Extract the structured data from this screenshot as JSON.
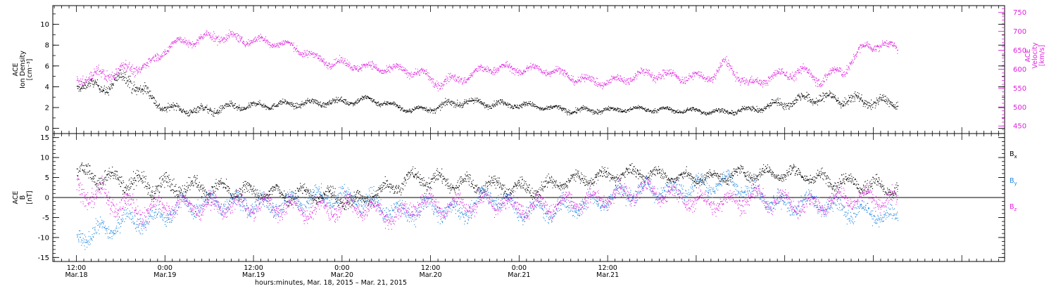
{
  "chart_data": [
    {
      "type": "scatter",
      "panel": "top",
      "left_axis": {
        "label_lines": [
          "ACE",
          "Ion Density",
          "[cm⁻³]"
        ],
        "ylim": [
          -0.5,
          11.8
        ],
        "ticks": [
          0,
          2,
          4,
          6,
          8,
          10
        ],
        "color": "#000000"
      },
      "right_axis": {
        "label_lines": [
          "ACE",
          "Velocity",
          "[km/s]"
        ],
        "ylim": [
          430,
          768
        ],
        "ticks": [
          450,
          500,
          550,
          600,
          650,
          700,
          750
        ],
        "color": "#e020e0"
      },
      "series": [
        {
          "axis": "left",
          "color": "#000000",
          "x": [
            0,
            4,
            7,
            9,
            12,
            15,
            17,
            20,
            24,
            30,
            36,
            40,
            45,
            48,
            52,
            56,
            60,
            64,
            68,
            72,
            76,
            80,
            84,
            88,
            92,
            96,
            100,
            104,
            108,
            111
          ],
          "y": [
            4.2,
            4.0,
            5.0,
            3.5,
            2.0,
            1.8,
            1.7,
            2.0,
            2.2,
            2.4,
            2.6,
            2.8,
            1.8,
            1.9,
            2.6,
            2.4,
            2.3,
            2.0,
            1.7,
            1.8,
            1.9,
            1.8,
            1.7,
            1.6,
            1.9,
            2.5,
            3.0,
            2.8,
            2.6,
            2.4
          ],
          "spread": [
            0.5,
            0.7,
            1.0,
            0.9,
            0.5,
            0.5,
            0.6,
            0.5,
            0.4,
            0.4,
            0.4,
            0.4,
            0.3,
            0.4,
            0.5,
            0.4,
            0.4,
            0.3,
            0.4,
            0.3,
            0.3,
            0.3,
            0.3,
            0.3,
            0.4,
            0.6,
            0.7,
            0.7,
            0.7,
            0.6
          ]
        },
        {
          "axis": "right",
          "color": "#e020e0",
          "x": [
            0,
            2,
            5,
            8,
            10,
            13,
            16,
            19,
            22,
            25,
            28,
            30,
            33,
            36,
            40,
            43,
            46,
            49,
            52,
            56,
            60,
            64,
            68,
            72,
            76,
            78,
            82,
            86,
            88,
            91,
            95,
            98,
            101,
            104,
            107,
            111
          ],
          "y": [
            575,
            580,
            595,
            605,
            615,
            670,
            675,
            690,
            680,
            675,
            668,
            655,
            625,
            615,
            605,
            600,
            595,
            565,
            575,
            605,
            600,
            600,
            575,
            565,
            585,
            590,
            580,
            580,
            615,
            560,
            585,
            595,
            575,
            600,
            665,
            660
          ],
          "spread": [
            15,
            20,
            25,
            20,
            15,
            15,
            15,
            20,
            15,
            15,
            12,
            15,
            15,
            15,
            15,
            15,
            15,
            20,
            15,
            15,
            15,
            15,
            15,
            15,
            15,
            20,
            15,
            15,
            20,
            15,
            15,
            20,
            20,
            20,
            15,
            15
          ]
        }
      ]
    },
    {
      "type": "scatter",
      "panel": "bottom",
      "left_axis": {
        "label_lines": [
          "ACE",
          "B",
          "[nT]"
        ],
        "ylim": [
          -16,
          16
        ],
        "ticks": [
          -15,
          -10,
          -5,
          0,
          5,
          10,
          15
        ],
        "color": "#000000"
      },
      "zero_line": true,
      "series": [
        {
          "name": "B",
          "sub": "x",
          "color": "#000000",
          "x": [
            0,
            4,
            8,
            10,
            14,
            20,
            26,
            32,
            38,
            44,
            46,
            50,
            56,
            62,
            66,
            70,
            74,
            78,
            82,
            86,
            90,
            94,
            98,
            100,
            104,
            108,
            111
          ],
          "y": [
            6,
            5,
            4,
            3,
            3,
            2,
            1,
            1,
            -1,
            4,
            5,
            4,
            3,
            2,
            4,
            5,
            6,
            6,
            5,
            5,
            6,
            6,
            6,
            5,
            4,
            3,
            2
          ],
          "spread": [
            3,
            3,
            3,
            3,
            3,
            2.5,
            2.5,
            2.5,
            2.5,
            2.5,
            2.5,
            2.5,
            2.5,
            2.5,
            2,
            2,
            2,
            2,
            2,
            2,
            2,
            2,
            2,
            2,
            2.5,
            2.5,
            2.5
          ]
        },
        {
          "name": "B",
          "sub": "y",
          "color": "#1f86e0",
          "x": [
            0,
            4,
            7,
            10,
            14,
            20,
            26,
            32,
            38,
            44,
            48,
            52,
            56,
            60,
            64,
            68,
            72,
            76,
            80,
            84,
            88,
            92,
            96,
            100,
            104,
            108,
            111
          ],
          "y": [
            -10,
            -8,
            -5,
            -6,
            -2,
            -1,
            -2,
            0,
            0,
            -4,
            -2,
            -4,
            1,
            -3,
            -3,
            -2,
            0,
            2,
            2,
            3,
            4,
            1,
            -2,
            -1,
            -3,
            -4,
            -5
          ],
          "spread": [
            3,
            3,
            3,
            3,
            3,
            3,
            3,
            3,
            3,
            3,
            3,
            3,
            3,
            3,
            3,
            3,
            3,
            3,
            3,
            3,
            3,
            3,
            3,
            3,
            3,
            3,
            3
          ]
        },
        {
          "name": "B",
          "sub": "z",
          "color": "#e020e0",
          "x": [
            0,
            4,
            8,
            12,
            16,
            20,
            26,
            32,
            38,
            44,
            46,
            50,
            56,
            60,
            64,
            68,
            72,
            76,
            80,
            84,
            88,
            92,
            96,
            100,
            104,
            108,
            111
          ],
          "y": [
            2,
            0,
            -3,
            -2,
            -2,
            -2,
            -2,
            -3,
            -2,
            -5,
            -1,
            -2,
            -1,
            -2,
            -2,
            -1,
            0,
            2,
            1,
            -1,
            -1,
            0,
            -1,
            -2,
            0,
            0,
            -1
          ],
          "spread": [
            4,
            4,
            4,
            3,
            3,
            3,
            3,
            3,
            3,
            3,
            3.5,
            3,
            3,
            3,
            3,
            3,
            3,
            3,
            3,
            3,
            3,
            3,
            3,
            3,
            3,
            3,
            3
          ]
        }
      ]
    }
  ],
  "x_axis": {
    "range_hours": [
      -3.2,
      125.8
    ],
    "data_end_hours": 111.3,
    "major_hours": [
      0,
      12,
      24,
      36,
      48,
      60,
      72,
      84,
      96,
      108,
      120
    ],
    "labels": [
      {
        "at": 0,
        "time": "12:00",
        "date": "Mar.18"
      },
      {
        "at": 12,
        "time": "0:00",
        "date": "Mar.19"
      },
      {
        "at": 24,
        "time": "12:00",
        "date": "Mar.19"
      },
      {
        "at": 36,
        "time": "0:00",
        "date": "Mar.20"
      },
      {
        "at": 48,
        "time": "12:00",
        "date": "Mar.20"
      },
      {
        "at": 60,
        "time": "0:00",
        "date": "Mar.21"
      },
      {
        "at": 72,
        "time": "12:00",
        "date": "Mar.21"
      }
    ],
    "title": "hours:minutes, Mar. 18, 2015 – Mar. 21, 2015"
  },
  "labels": {
    "xlabel": "hours:minutes, Mar. 18, 2015 – Mar. 21, 2015"
  }
}
